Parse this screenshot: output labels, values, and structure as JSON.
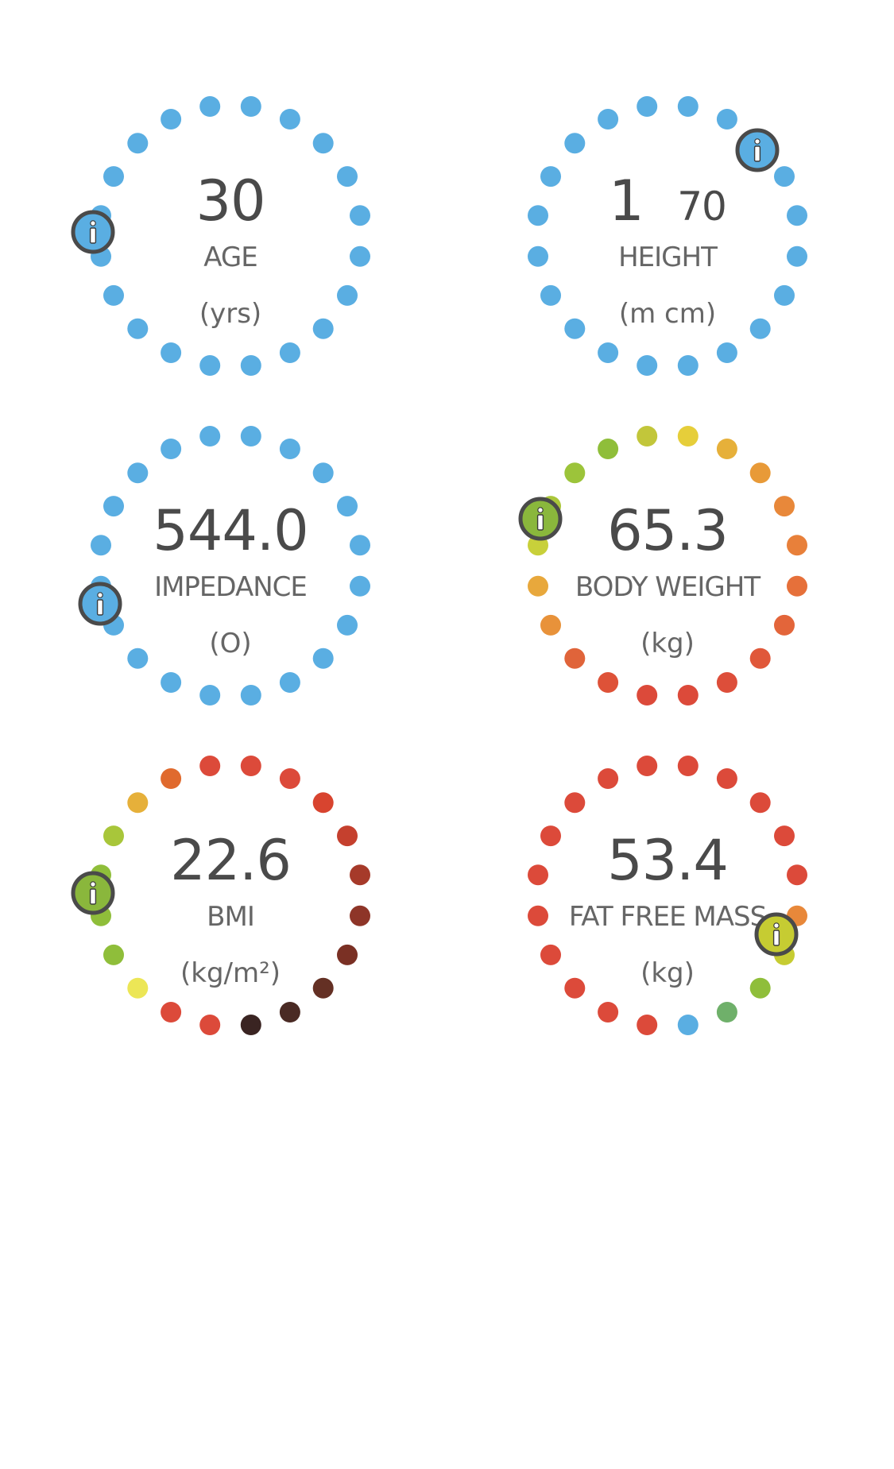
{
  "gauges": [
    {
      "id": "age",
      "value": "30",
      "value_secondary": "",
      "label": "AGE",
      "unit": "(yrs)",
      "info_color": "#5aaee2",
      "info_pos": "left",
      "dot_colors": [
        "#5aaee2",
        "#5aaee2",
        "#5aaee2",
        "#5aaee2",
        "#5aaee2",
        "#5aaee2",
        "#5aaee2",
        "#5aaee2",
        "#5aaee2",
        "#5aaee2",
        "#5aaee2",
        "#5aaee2",
        "#5aaee2",
        "#5aaee2",
        "#5aaee2",
        "#5aaee2",
        "#5aaee2",
        "#5aaee2",
        "#5aaee2",
        "#5aaee2"
      ]
    },
    {
      "id": "height",
      "value": "1",
      "value_secondary": "70",
      "label": "HEIGHT",
      "unit": "(m cm)",
      "info_color": "#5aaee2",
      "info_pos": "top-right",
      "dot_colors": [
        "#5aaee2",
        "#5aaee2",
        "#5aaee2",
        "#5aaee2",
        "#5aaee2",
        "#5aaee2",
        "#5aaee2",
        "#5aaee2",
        "#5aaee2",
        "#5aaee2",
        "#5aaee2",
        "#5aaee2",
        "#5aaee2",
        "#5aaee2",
        "#5aaee2",
        "#5aaee2",
        "#5aaee2",
        "#5aaee2",
        "#5aaee2",
        "#5aaee2"
      ]
    },
    {
      "id": "impedance",
      "value": "544.0",
      "value_secondary": "",
      "label": "IMPEDANCE",
      "unit": "(O)",
      "info_color": "#5aaee2",
      "info_pos": "lower-left",
      "dot_colors": [
        "#5aaee2",
        "#5aaee2",
        "#5aaee2",
        "#5aaee2",
        "#5aaee2",
        "#5aaee2",
        "#5aaee2",
        "#5aaee2",
        "#5aaee2",
        "#5aaee2",
        "#5aaee2",
        "#5aaee2",
        "#5aaee2",
        "#5aaee2",
        "#5aaee2",
        "#5aaee2",
        "#5aaee2",
        "#5aaee2",
        "#5aaee2",
        "#5aaee2"
      ]
    },
    {
      "id": "body-weight",
      "value": "65.3",
      "value_secondary": "",
      "label": "BODY WEIGHT",
      "unit": "(kg)",
      "info_color": "#8ab73c",
      "info_pos": "upper-left",
      "dot_colors": [
        "#e6ce3a",
        "#e6b03a",
        "#e89a38",
        "#e8883a",
        "#e8803a",
        "#e6703a",
        "#e3653a",
        "#e0583a",
        "#dd4e3a",
        "#dc4a3a",
        "#dc4a3a",
        "#de5238",
        "#e0643a",
        "#e8923a",
        "#e8a83c",
        "#c8d03a",
        "#aac63a",
        "#9cc43a",
        "#8fbe3a",
        "#c2c63a"
      ]
    },
    {
      "id": "bmi",
      "value": "22.6",
      "value_secondary": "",
      "label": "BMI",
      "unit": "(kg/m²)",
      "info_color": "#8ab73c",
      "info_pos": "left",
      "dot_colors": [
        "#dc4a3a",
        "#dc4a3a",
        "#d8442f",
        "#c5402e",
        "#a63a2a",
        "#8e3528",
        "#7a3024",
        "#643024",
        "#4a2a24",
        "#3a2422",
        "#dc4a3a",
        "#dc4a3a",
        "#ece656",
        "#8fbe3a",
        "#8fbe3a",
        "#8fbe3a",
        "#a8c63a",
        "#e6b03a",
        "#e06a2e",
        "#dc4a3a"
      ]
    },
    {
      "id": "fat-free-mass",
      "value": "53.4",
      "value_secondary": "",
      "label": "FAT FREE MASS",
      "unit": "(kg)",
      "info_color": "#c6cc32",
      "info_pos": "right-lower",
      "dot_colors": [
        "#dc4a3a",
        "#dc4a3a",
        "#dc4a3a",
        "#dc4a3a",
        "#dc4a3a",
        "#e8883a",
        "#c6cc32",
        "#8fbe3a",
        "#6fb06a",
        "#5aaee2",
        "#dc4a3a",
        "#dc4a3a",
        "#dc4a3a",
        "#dc4a3a",
        "#dc4a3a",
        "#dc4a3a",
        "#dc4a3a",
        "#dc4a3a",
        "#dc4a3a",
        "#dc4a3a"
      ]
    }
  ]
}
